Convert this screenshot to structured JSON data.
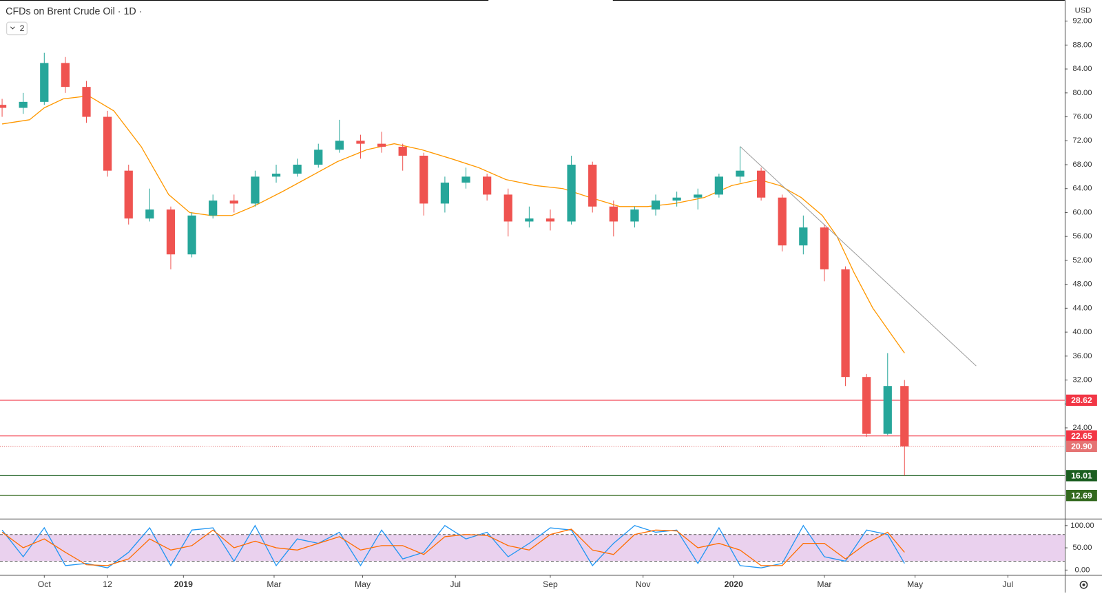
{
  "chart_data": [
    {
      "type": "candlestick",
      "title": "CFDs on Brent Crude Oil · 1D ·",
      "indicator_count": "2",
      "currency": "USD",
      "up_color": "#26a69a",
      "down_color": "#ef5350",
      "x": [
        -20,
        -10,
        0,
        10,
        20,
        30,
        40,
        50,
        60,
        70,
        80,
        90,
        100,
        110,
        120,
        130,
        140,
        150,
        160,
        170,
        180,
        190,
        200,
        210,
        220,
        230,
        240,
        250,
        260,
        270,
        280,
        290,
        300,
        310,
        320,
        330,
        340,
        350,
        360,
        370,
        380,
        390,
        400,
        408
      ],
      "open": [
        78,
        77.5,
        78.5,
        85,
        81,
        76,
        67,
        59,
        60.5,
        53,
        59.5,
        62,
        61.5,
        66,
        66.5,
        68,
        70.5,
        72,
        71.5,
        71,
        69.5,
        61.5,
        65,
        66,
        63,
        58.5,
        59,
        58.5,
        68,
        61,
        58.5,
        60.5,
        62,
        62.5,
        63,
        66,
        67,
        62.5,
        54.5,
        57.5,
        50.5,
        32.5,
        23,
        31
      ],
      "high": [
        79,
        80,
        86.7,
        86,
        82,
        77,
        68,
        64,
        61,
        60,
        63,
        63,
        67,
        68,
        69,
        71.5,
        75.5,
        73,
        73.5,
        71.5,
        70,
        66,
        67.5,
        66.5,
        64,
        61,
        60.5,
        69.5,
        68.5,
        62,
        61,
        63,
        63.5,
        64,
        66.5,
        71,
        67.5,
        63,
        59.5,
        58,
        51,
        33,
        36.5,
        32
      ],
      "low": [
        76,
        76.5,
        78,
        80,
        75,
        66,
        58,
        58.5,
        50.5,
        52.5,
        59,
        60,
        61,
        65,
        66,
        67.5,
        70,
        69,
        70,
        67,
        59.5,
        60,
        64,
        62,
        56,
        57.5,
        57,
        58,
        60,
        56,
        57.5,
        59.5,
        61,
        60.5,
        62.5,
        65,
        62,
        53.5,
        53,
        48.5,
        31,
        22.5,
        22.8,
        16
      ],
      "close": [
        77.5,
        78.5,
        85,
        81,
        76,
        67,
        59,
        60.5,
        53,
        59.5,
        62,
        61.5,
        66,
        66.5,
        68,
        70.5,
        72,
        71.5,
        71,
        69.5,
        61.5,
        65,
        66,
        63,
        58.5,
        59,
        58.5,
        68,
        61,
        58.5,
        60.5,
        62,
        62.5,
        63,
        66,
        67,
        62.5,
        54.5,
        57.5,
        50.5,
        32.5,
        23,
        31,
        20.9
      ],
      "moving_average": {
        "color": "#ff9800",
        "x": [
          -20,
          -7,
          0,
          9,
          21,
          33,
          46,
          59,
          69,
          79,
          89,
          99,
          113,
          126,
          139,
          153,
          166,
          179,
          193,
          206,
          219,
          233,
          246,
          259,
          273,
          286,
          299,
          313,
          326,
          339,
          349,
          359,
          369,
          376,
          384,
          393,
          401,
          408
        ],
        "values": [
          74.8,
          75.5,
          77.5,
          79,
          79.5,
          77,
          71,
          63,
          60,
          59.5,
          59.5,
          61,
          63.5,
          66,
          68.5,
          70.5,
          71.5,
          70.5,
          69,
          67.5,
          65.5,
          64.5,
          64,
          62.5,
          61,
          61,
          61.5,
          62.5,
          64.5,
          65.5,
          64.5,
          62.5,
          59.5,
          56,
          50,
          44,
          40,
          36.5
        ]
      },
      "trendline": {
        "color": "#9e9e9e",
        "x": [
          330,
          442
        ],
        "values": [
          71.06,
          34.35
        ]
      },
      "levels": [
        {
          "value": 28.62,
          "label": "28.62",
          "color": "#f23645",
          "dotted": false
        },
        {
          "value": 22.65,
          "label": "22.65",
          "color": "#f23645",
          "dotted": false
        },
        {
          "value": 20.9,
          "label": "20.90",
          "color": "#e57373",
          "dotted": true
        },
        {
          "value": 16.01,
          "label": "16.01",
          "color": "#1b5e20",
          "dotted": false
        },
        {
          "value": 12.69,
          "label": "12.69",
          "color": "#33691e",
          "dotted": false
        }
      ],
      "xlim": [
        -21,
        484
      ],
      "ylim": [
        8.82,
        95.53
      ],
      "xticks": [
        {
          "value": 0,
          "label": "Oct"
        },
        {
          "value": 30,
          "label": "12"
        },
        {
          "value": 66,
          "label": "2019"
        },
        {
          "value": 109,
          "label": "Mar"
        },
        {
          "value": 151,
          "label": "May"
        },
        {
          "value": 195,
          "label": "Jul"
        },
        {
          "value": 240,
          "label": "Sep"
        },
        {
          "value": 284,
          "label": "Nov"
        },
        {
          "value": 327,
          "label": "2020"
        },
        {
          "value": 370,
          "label": "Mar"
        },
        {
          "value": 413,
          "label": "May"
        },
        {
          "value": 457,
          "label": "Jul"
        }
      ],
      "yticks": [
        {
          "value": 92,
          "label": "92.00"
        },
        {
          "value": 88,
          "label": "88.00"
        },
        {
          "value": 84,
          "label": "84.00"
        },
        {
          "value": 80,
          "label": "80.00"
        },
        {
          "value": 76,
          "label": "76.00"
        },
        {
          "value": 72,
          "label": "72.00"
        },
        {
          "value": 68,
          "label": "68.00"
        },
        {
          "value": 64,
          "label": "64.00"
        },
        {
          "value": 60,
          "label": "60.00"
        },
        {
          "value": 56,
          "label": "56.00"
        },
        {
          "value": 52,
          "label": "52.00"
        },
        {
          "value": 48,
          "label": "48.00"
        },
        {
          "value": 44,
          "label": "44.00"
        },
        {
          "value": 40,
          "label": "40.00"
        },
        {
          "value": 36,
          "label": "36.00"
        },
        {
          "value": 32,
          "label": "32.00"
        },
        {
          "value": 28,
          "label": "28.00"
        },
        {
          "value": 24,
          "label": "24.00"
        }
      ]
    },
    {
      "type": "line",
      "x": [
        -20,
        -10,
        0,
        10,
        20,
        30,
        40,
        50,
        60,
        70,
        80,
        90,
        100,
        110,
        120,
        130,
        140,
        150,
        160,
        170,
        180,
        190,
        200,
        210,
        220,
        230,
        240,
        250,
        260,
        270,
        280,
        290,
        300,
        310,
        320,
        330,
        340,
        350,
        360,
        370,
        380,
        390,
        400,
        408
      ],
      "series": [
        {
          "color": "#2196f3",
          "values": [
            90,
            30,
            95,
            10,
            15,
            5,
            40,
            95,
            10,
            90,
            95,
            20,
            100,
            10,
            70,
            60,
            85,
            10,
            90,
            25,
            40,
            100,
            70,
            85,
            30,
            60,
            95,
            90,
            10,
            60,
            100,
            85,
            90,
            15,
            95,
            10,
            5,
            15,
            100,
            30,
            20,
            90,
            80,
            15
          ]
        },
        {
          "color": "#ff6d00",
          "values": [
            85,
            50,
            70,
            40,
            12,
            10,
            25,
            70,
            45,
            55,
            90,
            50,
            65,
            50,
            45,
            60,
            75,
            45,
            55,
            55,
            35,
            75,
            80,
            78,
            55,
            45,
            80,
            92,
            45,
            35,
            80,
            90,
            88,
            50,
            60,
            45,
            10,
            10,
            60,
            60,
            25,
            60,
            85,
            40
          ]
        }
      ],
      "band": {
        "upper": 80,
        "lower": 20,
        "color": "#e1bee7"
      },
      "ylim": [
        -11,
        114
      ],
      "yticks": [
        {
          "value": 100,
          "label": "100.00"
        },
        {
          "value": 50,
          "label": "50.00"
        },
        {
          "value": 0,
          "label": "0.00"
        }
      ]
    }
  ]
}
